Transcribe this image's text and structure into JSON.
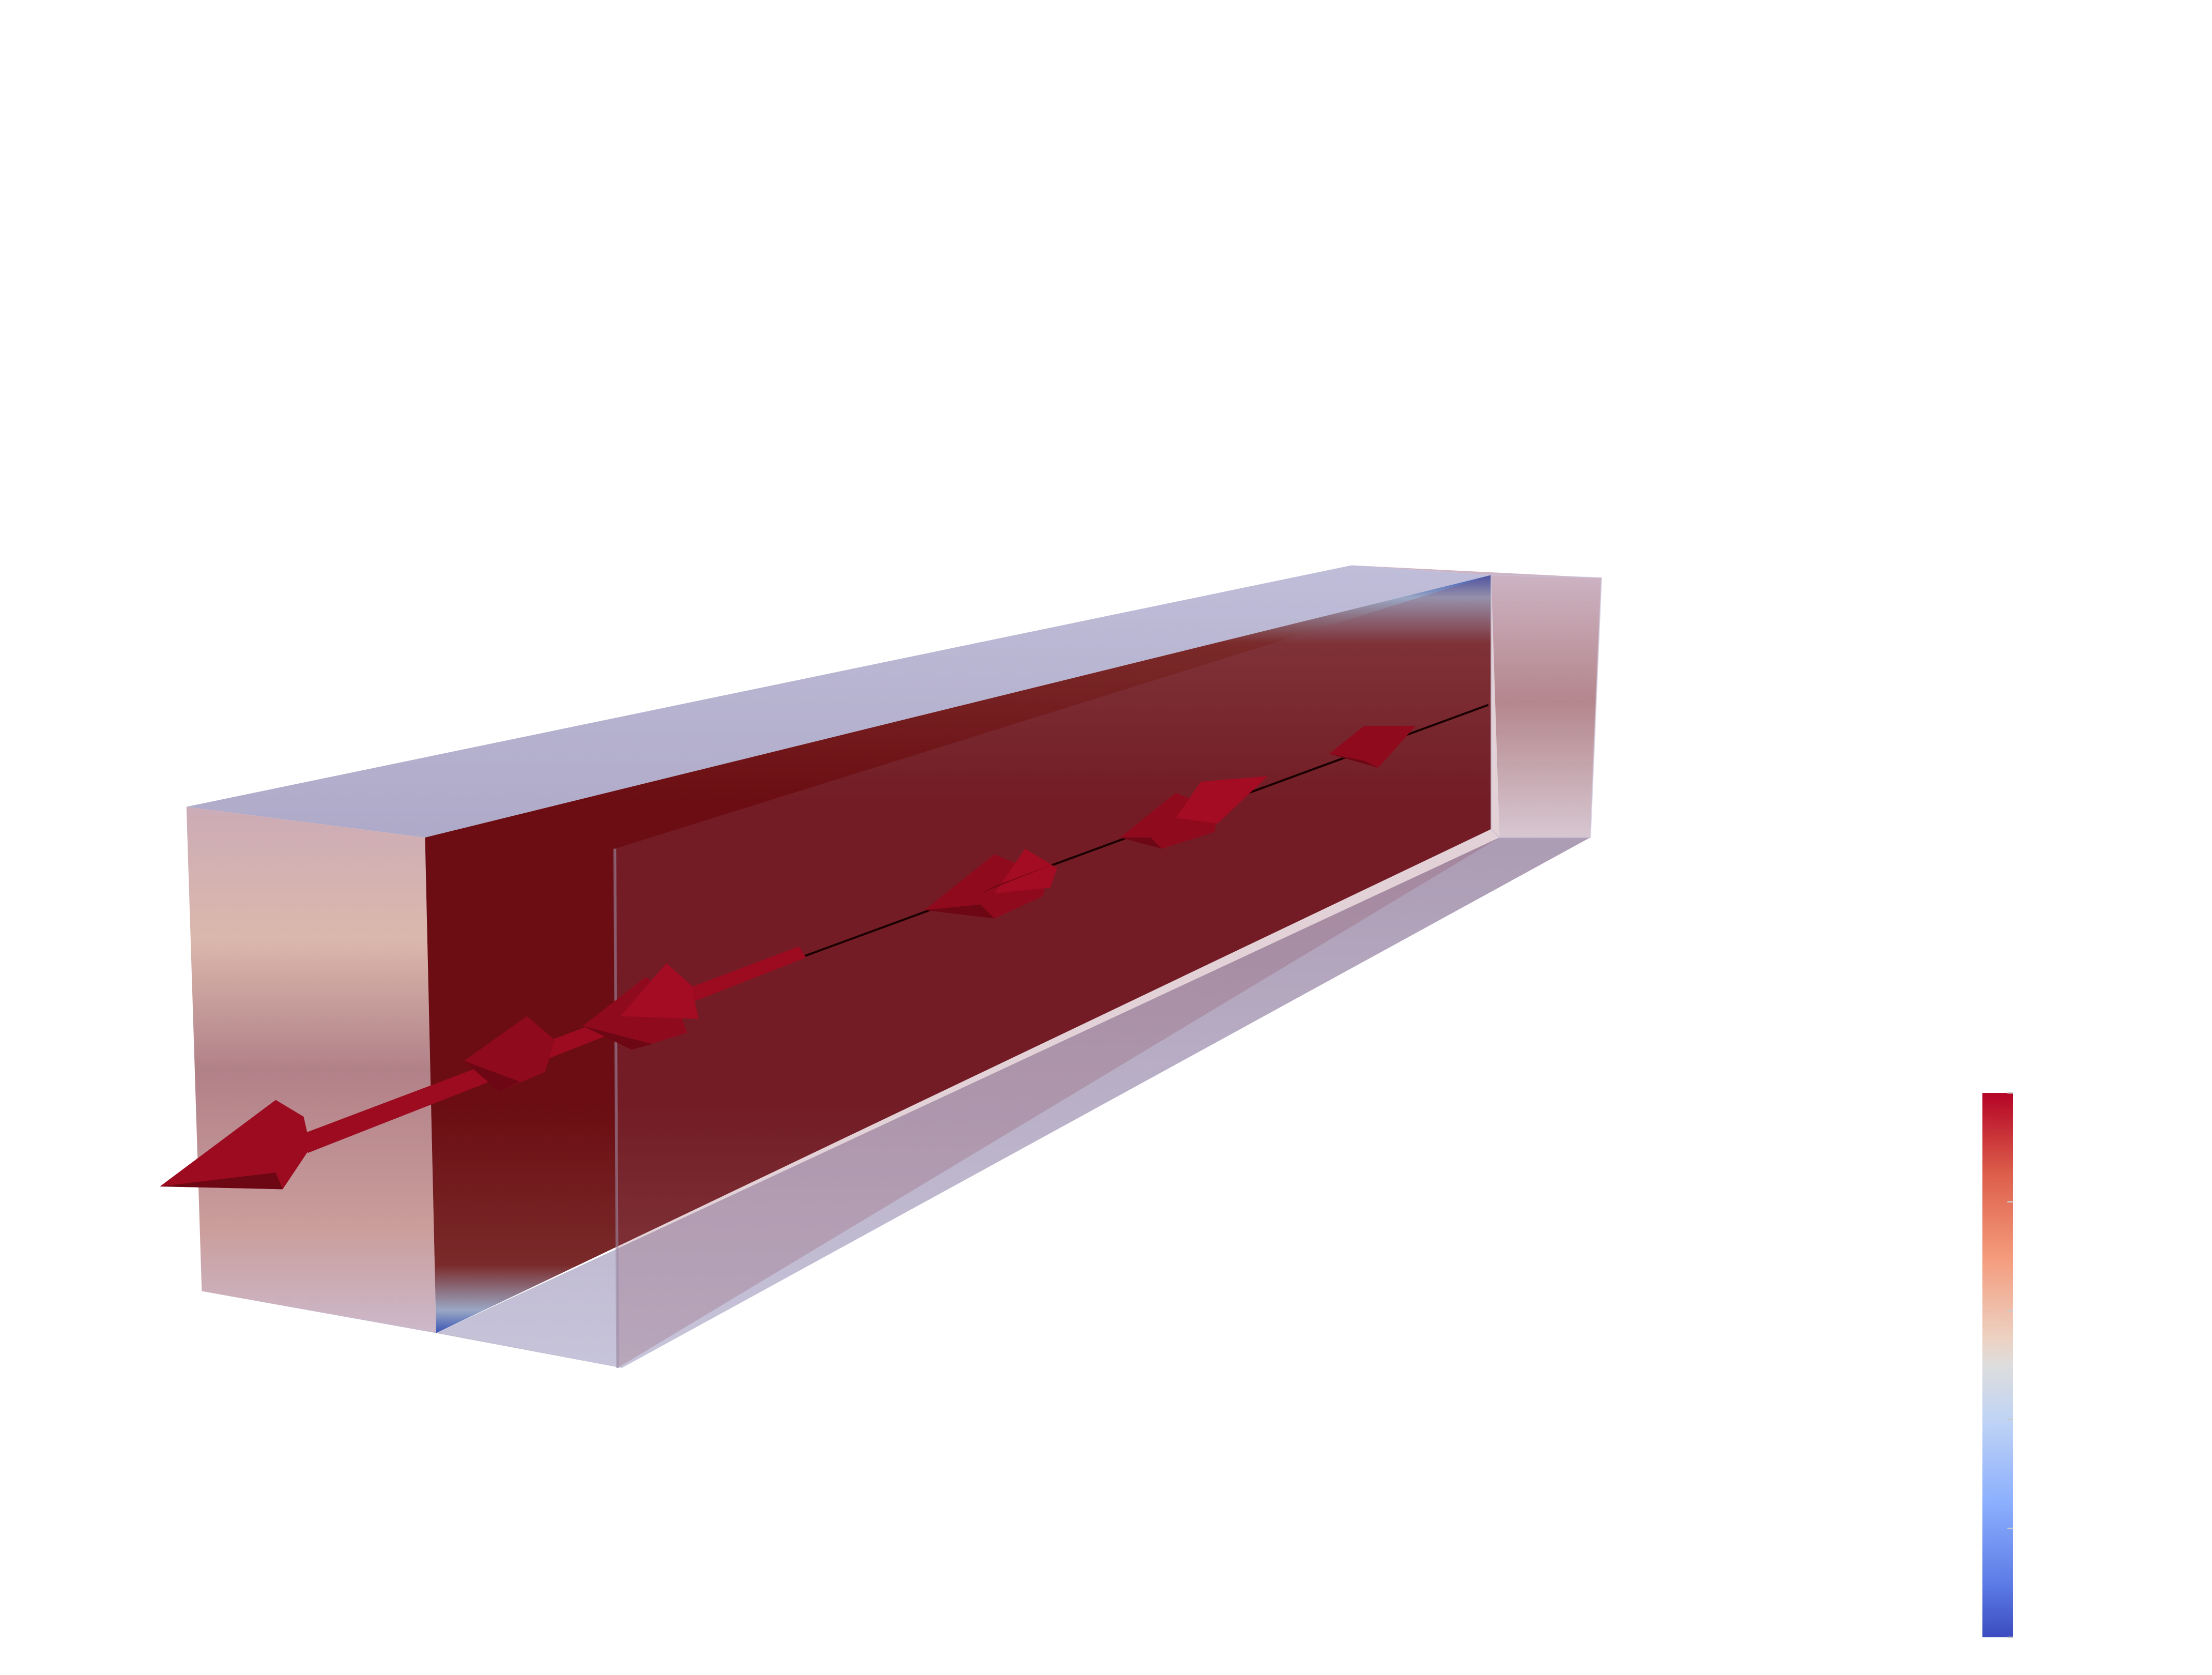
{
  "scene": {
    "description_type": "3d-render",
    "background": "#ffffff",
    "object": "channel-volume-with-velocity-glyphs",
    "glyph_color": "#8f0a1c",
    "glyph_count": 10,
    "colormap": {
      "name": "coolwarm",
      "top_color": "#b40426",
      "mid_color": "#dddddd",
      "bottom_color": "#3b4cc0",
      "tick_count": 6,
      "labels_visible": false
    }
  }
}
